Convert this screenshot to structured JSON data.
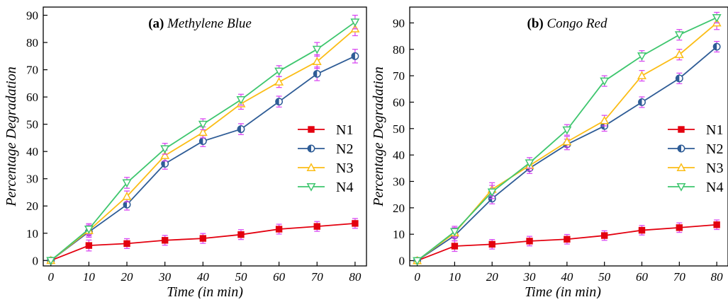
{
  "chart_data": [
    {
      "panel_label": "(a)",
      "title": "Methylene Blue",
      "type": "line",
      "xlabel": "Time (in min)",
      "ylabel": "Percentage Degradation",
      "xlim": [
        -2,
        83
      ],
      "ylim": [
        -2,
        93
      ],
      "xticks": [
        "0",
        "10",
        "20",
        "30",
        "40",
        "50",
        "60",
        "70",
        "80"
      ],
      "yticks": [
        "0",
        "10",
        "20",
        "30",
        "40",
        "50",
        "60",
        "70",
        "80",
        "90"
      ],
      "legend_position": "right",
      "x": [
        0,
        10,
        20,
        30,
        40,
        50,
        60,
        70,
        80
      ],
      "series": [
        {
          "name": "N1",
          "color": "#e3000f",
          "marker": "square",
          "values": [
            0,
            5.5,
            6.2,
            7.4,
            8.1,
            9.5,
            11.5,
            12.5,
            13.6
          ],
          "error": [
            1,
            2,
            1.8,
            1.8,
            1.8,
            1.8,
            1.8,
            1.8,
            1.8
          ]
        },
        {
          "name": "N2",
          "color": "#2e5c96",
          "marker": "circle-half",
          "values": [
            0,
            10.5,
            20.5,
            35.5,
            43.8,
            48.2,
            58.3,
            68.5,
            75
          ],
          "error": [
            1,
            2,
            2,
            2,
            2,
            2,
            2,
            2.5,
            2.5
          ]
        },
        {
          "name": "N3",
          "color": "#fbbd16",
          "marker": "triangle-up",
          "values": [
            0,
            11,
            23.5,
            38.5,
            47,
            57.5,
            65.5,
            73,
            85
          ],
          "error": [
            1,
            2,
            2,
            2,
            2,
            2,
            2,
            2.5,
            2.5
          ]
        },
        {
          "name": "N4",
          "color": "#3ec66e",
          "marker": "triangle-down",
          "values": [
            0,
            11.5,
            28.5,
            41,
            50,
            59,
            69.5,
            77.5,
            87.5
          ],
          "error": [
            1,
            2,
            2,
            2,
            2,
            2,
            2,
            2.5,
            2.5
          ]
        }
      ]
    },
    {
      "panel_label": "(b)",
      "title": "Congo Red",
      "type": "line",
      "xlabel": "Time (in min)",
      "ylabel": "Percentage Degradation",
      "xlim": [
        -2,
        83
      ],
      "ylim": [
        -2,
        96
      ],
      "xticks": [
        "0",
        "10",
        "20",
        "30",
        "40",
        "50",
        "60",
        "70",
        "80"
      ],
      "yticks": [
        "0",
        "10",
        "20",
        "30",
        "40",
        "50",
        "60",
        "70",
        "80",
        "90"
      ],
      "legend_position": "right",
      "x": [
        0,
        10,
        20,
        30,
        40,
        50,
        60,
        70,
        80
      ],
      "series": [
        {
          "name": "N1",
          "color": "#e3000f",
          "marker": "square",
          "values": [
            0,
            5.5,
            6.2,
            7.4,
            8.1,
            9.5,
            11.5,
            12.5,
            13.6
          ],
          "error": [
            1,
            2,
            1.8,
            1.8,
            1.8,
            1.8,
            1.8,
            1.8,
            1.8
          ]
        },
        {
          "name": "N2",
          "color": "#2e5c96",
          "marker": "circle-half",
          "values": [
            0,
            9.5,
            23.5,
            35,
            44,
            51,
            60,
            69,
            81
          ],
          "error": [
            1,
            2,
            2,
            2,
            2,
            2,
            2,
            2,
            2
          ]
        },
        {
          "name": "N3",
          "color": "#fbbd16",
          "marker": "triangle-up",
          "values": [
            0,
            10.5,
            27,
            36,
            45,
            53,
            70,
            78,
            90
          ],
          "error": [
            1,
            2,
            2.5,
            2,
            2,
            2,
            2,
            2,
            2.5
          ]
        },
        {
          "name": "N4",
          "color": "#3ec66e",
          "marker": "triangle-down",
          "values": [
            0,
            11,
            26,
            37,
            49.5,
            68,
            77.5,
            85.5,
            92
          ],
          "error": [
            1,
            2,
            2.5,
            2,
            2,
            2,
            2,
            2,
            2
          ]
        }
      ]
    }
  ]
}
